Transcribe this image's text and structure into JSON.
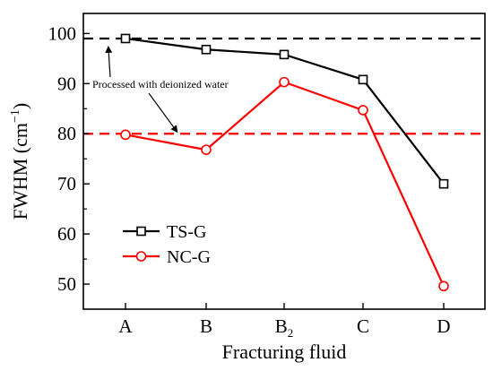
{
  "chart_data": {
    "type": "line",
    "title": "",
    "xlabel": "Fracturing fluid",
    "ylabel": "FWHM (cm",
    "ylabel_exponent": "−1",
    "ylabel_close": ")",
    "categories": [
      "A",
      "B",
      "B",
      "C",
      "D"
    ],
    "category_subscripts": [
      "",
      "",
      "2",
      "",
      ""
    ],
    "ylim": [
      45,
      104
    ],
    "yticks": [
      50,
      60,
      70,
      80,
      90,
      100
    ],
    "grid": false,
    "legend_position": "lower-left",
    "series": [
      {
        "name": "TS-G",
        "values": [
          99.0,
          96.8,
          95.8,
          90.8,
          70.0
        ],
        "color": "#000000",
        "marker": "square"
      },
      {
        "name": "NC-G",
        "values": [
          79.8,
          76.8,
          90.3,
          84.7,
          49.6
        ],
        "color": "#ff0000",
        "marker": "circle"
      }
    ],
    "reference_lines": [
      {
        "value": 99.0,
        "color": "#000000",
        "style": "dashed"
      },
      {
        "value": 80.0,
        "color": "#ff0000",
        "style": "dashed"
      }
    ],
    "annotation": {
      "text": "Processed with deionized water"
    }
  }
}
